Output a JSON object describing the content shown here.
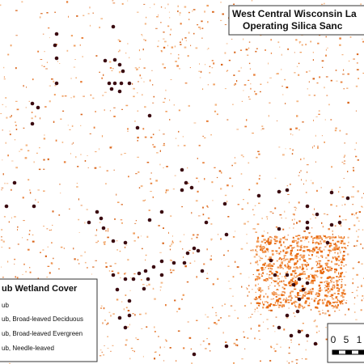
{
  "header": {
    "title_line1": "West Central Wisconsin La",
    "title_line2": "Operating Silica Sanc"
  },
  "legend": {
    "title": "ub Wetland Cover",
    "items": [
      "ub",
      "ub, Broad-leaved Deciduous",
      "ub, Broad-leaved Evergreen",
      "ub, Needle-leaved"
    ]
  },
  "scale_bar": {
    "labels": [
      "0",
      "5",
      "1"
    ]
  }
}
